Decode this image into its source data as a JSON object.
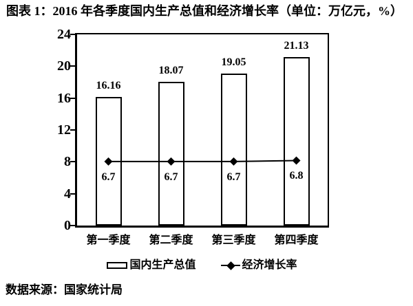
{
  "title": "图表 1：2016 年各季度国内生产总值和经济增长率（单位：万亿元，%）",
  "source_note": "数据来源：国家统计局",
  "colors": {
    "ink": "#000000",
    "background": "#ffffff",
    "bar_fill": "#ffffff",
    "bar_border": "#000000",
    "line": "#000000",
    "marker": "#000000"
  },
  "chart_data": {
    "type": "combo",
    "categories": [
      "第一季度",
      "第二季度",
      "第三季度",
      "第四季度"
    ],
    "series": [
      {
        "name": "国内生产总值",
        "type": "bar",
        "axis": "primary",
        "values": [
          16.16,
          18.07,
          19.05,
          21.13
        ],
        "labels": [
          "16.16",
          "18.07",
          "19.05",
          "21.13"
        ]
      },
      {
        "name": "经济增长率",
        "type": "line",
        "axis": "secondary",
        "marker": "diamond",
        "values": [
          6.7,
          6.7,
          6.7,
          6.8
        ],
        "labels": [
          "6.7",
          "6.7",
          "6.7",
          "6.8"
        ]
      }
    ],
    "ylim": [
      0,
      24
    ],
    "yticks": [
      0,
      4,
      8,
      12,
      16,
      20,
      24
    ],
    "y2lim": [
      0,
      20
    ],
    "grid": false,
    "legend_position": "bottom",
    "title": "2016 年各季度国内生产总值和经济增长率",
    "units": "万亿元，%"
  }
}
